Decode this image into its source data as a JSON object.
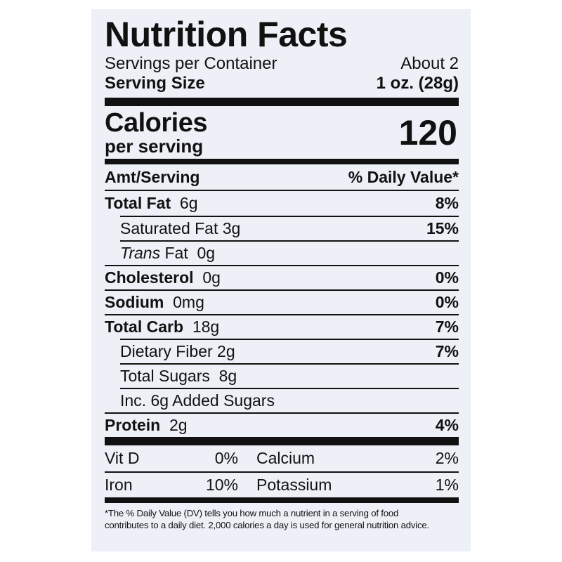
{
  "label": {
    "title": "Nutrition Facts",
    "servings_label": "Servings per Container",
    "servings_value": "About 2",
    "serving_size_label": "Serving Size",
    "serving_size_value": "1 oz. (28g)",
    "calories_label": "Calories",
    "calories_sub": "per serving",
    "calories_value": "120",
    "amt_header": "Amt/Serving",
    "dv_header": "% Daily Value*",
    "nutrients": [
      {
        "name": "Total Fat",
        "amount": "6g",
        "dv": "8%"
      },
      {
        "name": "Saturated Fat",
        "amount": "3g",
        "dv": "15%"
      },
      {
        "name_italic": "Trans",
        "name": "Fat",
        "amount": "0g",
        "dv": ""
      },
      {
        "name": "Cholesterol",
        "amount": "0g",
        "dv": "0%"
      },
      {
        "name": "Sodium",
        "amount": "0mg",
        "dv": "0%"
      },
      {
        "name": "Total Carb",
        "amount": "18g",
        "dv": "7%"
      },
      {
        "name": "Dietary Fiber",
        "amount": "2g",
        "dv": "7%"
      },
      {
        "name": "Total Sugars",
        "amount": "8g",
        "dv": ""
      },
      {
        "name": "Inc. 6g Added Sugars",
        "amount": "",
        "dv": ""
      },
      {
        "name": "Protein",
        "amount": "2g",
        "dv": "4%"
      }
    ],
    "vitamins": [
      {
        "a": "Vit D",
        "a_val": "0%",
        "b": "Calcium",
        "b_val": "2%"
      },
      {
        "a": "Iron",
        "a_val": "10%",
        "b": "Potassium",
        "b_val": "1%"
      }
    ],
    "footnote_line1": "*The % Daily Value (DV) tells you how much a nutrient in a serving of food",
    "footnote_line2": "contributes to a daily diet. 2,000 calories a day is used for general nutrition advice."
  }
}
